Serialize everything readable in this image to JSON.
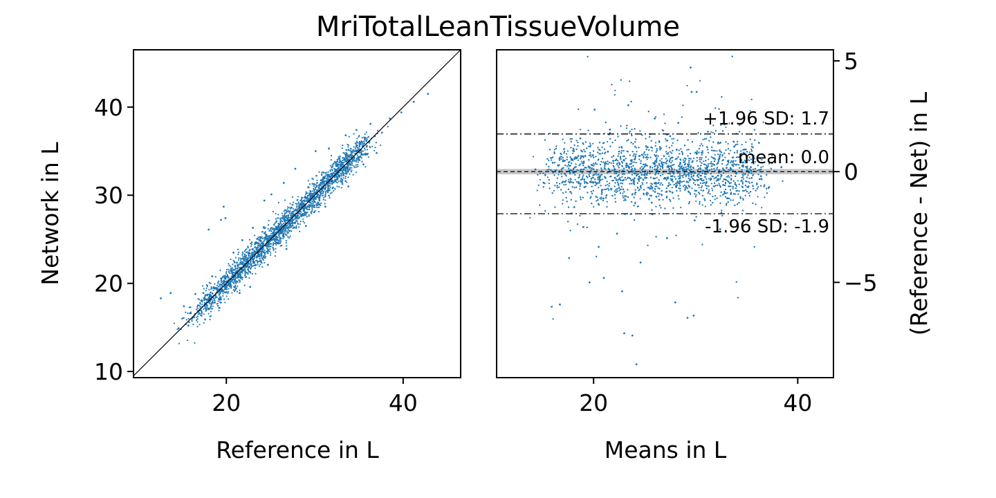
{
  "title": "MriTotalLeanTissueVolume",
  "colors": {
    "points": "#1f77b4",
    "axes": "#000000",
    "band": "#c7c7c7"
  },
  "chart_data": [
    {
      "type": "scatter",
      "xlabel": "Reference in L",
      "ylabel": "Network in L",
      "xlim": [
        9.5,
        46.5
      ],
      "ylim": [
        9.3,
        46.5
      ],
      "xticks": [
        20,
        40
      ],
      "yticks": [
        10,
        20,
        30,
        40
      ],
      "identity_line": true,
      "points": [
        [
          12.6,
          18.3
        ],
        [
          13.7,
          18.9
        ],
        [
          15.2,
          17.4
        ],
        [
          15.9,
          16.6
        ],
        [
          16.8,
          17.5
        ],
        [
          17.4,
          18.9
        ],
        [
          18.1,
          18.3
        ],
        [
          18.7,
          19.4
        ],
        [
          19.3,
          19.1
        ],
        [
          19.8,
          20.2
        ],
        [
          20.4,
          20.0
        ],
        [
          21.1,
          21.3
        ],
        [
          21.8,
          21.5
        ],
        [
          22.5,
          22.4
        ],
        [
          23.2,
          23.2
        ],
        [
          23.9,
          24.0
        ],
        [
          24.6,
          24.7
        ],
        [
          25.3,
          25.5
        ],
        [
          26.0,
          26.2
        ],
        [
          26.7,
          26.8
        ],
        [
          27.4,
          27.6
        ],
        [
          28.1,
          28.1
        ],
        [
          28.8,
          28.9
        ],
        [
          29.5,
          29.4
        ],
        [
          30.2,
          30.3
        ],
        [
          31.0,
          30.8
        ],
        [
          31.8,
          31.9
        ],
        [
          32.6,
          32.5
        ],
        [
          33.4,
          33.2
        ],
        [
          34.2,
          34.1
        ],
        [
          35.0,
          34.9
        ],
        [
          35.9,
          35.6
        ],
        [
          36.8,
          36.7
        ],
        [
          37.6,
          37.1
        ],
        [
          38.5,
          38.7
        ],
        [
          39.8,
          39.4
        ],
        [
          41.2,
          40.6
        ],
        [
          42.8,
          41.5
        ],
        [
          19.7,
          28.7
        ],
        [
          19.9,
          27.4
        ],
        [
          19.4,
          27.2
        ],
        [
          18.0,
          26.1
        ],
        [
          21.8,
          24.9
        ],
        [
          23.0,
          26.3
        ],
        [
          24.3,
          29.4
        ],
        [
          25.1,
          30.1
        ],
        [
          26.5,
          31.4
        ],
        [
          27.8,
          33.0
        ],
        [
          30.1,
          35.0
        ],
        [
          31.6,
          35.3
        ],
        [
          33.5,
          36.8
        ],
        [
          34.7,
          37.4
        ],
        [
          36.3,
          38.1
        ],
        [
          24.7,
          22.1
        ],
        [
          26.8,
          23.9
        ],
        [
          29.0,
          26.5
        ],
        [
          31.2,
          28.7
        ],
        [
          21.5,
          18.9
        ],
        [
          19.2,
          17.2
        ],
        [
          17.6,
          15.9
        ],
        [
          22.7,
          19.6
        ],
        [
          18.4,
          20.8
        ],
        [
          20.8,
          23.5
        ],
        [
          16.5,
          18.8
        ],
        [
          15.7,
          15.2
        ],
        [
          14.6,
          14.9
        ],
        [
          33.8,
          31.0
        ],
        [
          35.5,
          33.5
        ],
        [
          37.0,
          34.8
        ]
      ]
    },
    {
      "type": "scatter",
      "xlabel": "Means in L",
      "ylabel": "(Reference - Net) in L",
      "xlim": [
        10.5,
        43.5
      ],
      "ylim": [
        -9.3,
        5.5
      ],
      "xticks": [
        20,
        40
      ],
      "yticks": [
        -5,
        0,
        5
      ],
      "ytick_labels": [
        "−5",
        "0",
        "5"
      ],
      "mean": 0.0,
      "upper_loa": 1.7,
      "lower_loa": -1.9,
      "annotations": [
        "+1.96 SD: 1.7",
        "mean: 0.0",
        "-1.96 SD: -1.9"
      ],
      "points": [
        [
          17.2,
          -0.1
        ],
        [
          18.3,
          0.6
        ],
        [
          19.1,
          -0.7
        ],
        [
          19.8,
          0.3
        ],
        [
          20.6,
          -0.4
        ],
        [
          21.4,
          0.9
        ],
        [
          22.1,
          0.1
        ],
        [
          22.9,
          -0.8
        ],
        [
          23.7,
          0.5
        ],
        [
          24.5,
          -0.3
        ],
        [
          25.3,
          1.1
        ],
        [
          26.1,
          -0.5
        ],
        [
          26.9,
          0.7
        ],
        [
          27.7,
          -0.2
        ],
        [
          28.5,
          0.4
        ],
        [
          29.3,
          -0.9
        ],
        [
          30.1,
          0.8
        ],
        [
          30.9,
          -0.1
        ],
        [
          31.8,
          0.6
        ],
        [
          32.7,
          -0.6
        ],
        [
          33.6,
          0.3
        ],
        [
          34.5,
          -0.4
        ],
        [
          35.4,
          0.2
        ],
        [
          36.4,
          -0.2
        ],
        [
          18.7,
          1.5
        ],
        [
          20.1,
          2.8
        ],
        [
          21.6,
          1.9
        ],
        [
          23.4,
          3.0
        ],
        [
          26.0,
          2.4
        ],
        [
          28.3,
          2.2
        ],
        [
          29.6,
          3.6
        ],
        [
          31.2,
          1.8
        ],
        [
          19.0,
          -2.5
        ],
        [
          20.5,
          -3.4
        ],
        [
          22.3,
          -2.8
        ],
        [
          24.6,
          -4.1
        ],
        [
          27.2,
          -3.0
        ],
        [
          29.9,
          -2.2
        ],
        [
          32.4,
          -2.6
        ],
        [
          21.0,
          -4.8
        ],
        [
          17.6,
          -3.9
        ],
        [
          19.6,
          -5.0
        ],
        [
          16.7,
          -6.0
        ],
        [
          15.9,
          -6.1
        ],
        [
          22.8,
          -5.4
        ],
        [
          28.0,
          -5.9
        ],
        [
          29.2,
          -6.6
        ],
        [
          29.8,
          -6.5
        ],
        [
          23.0,
          -7.3
        ],
        [
          23.8,
          -7.4
        ],
        [
          24.2,
          -8.7
        ],
        [
          29.5,
          4.7
        ],
        [
          30.1,
          3.6
        ],
        [
          36.2,
          1.3
        ],
        [
          38.4,
          0.2
        ],
        [
          14.3,
          0.1
        ],
        [
          15.1,
          -0.5
        ],
        [
          16.0,
          0.4
        ],
        [
          34.8,
          1.0
        ],
        [
          33.1,
          -1.2
        ],
        [
          37.2,
          -0.7
        ],
        [
          18.1,
          -1.6
        ],
        [
          25.7,
          -1.4
        ],
        [
          27.5,
          1.6
        ]
      ]
    }
  ]
}
